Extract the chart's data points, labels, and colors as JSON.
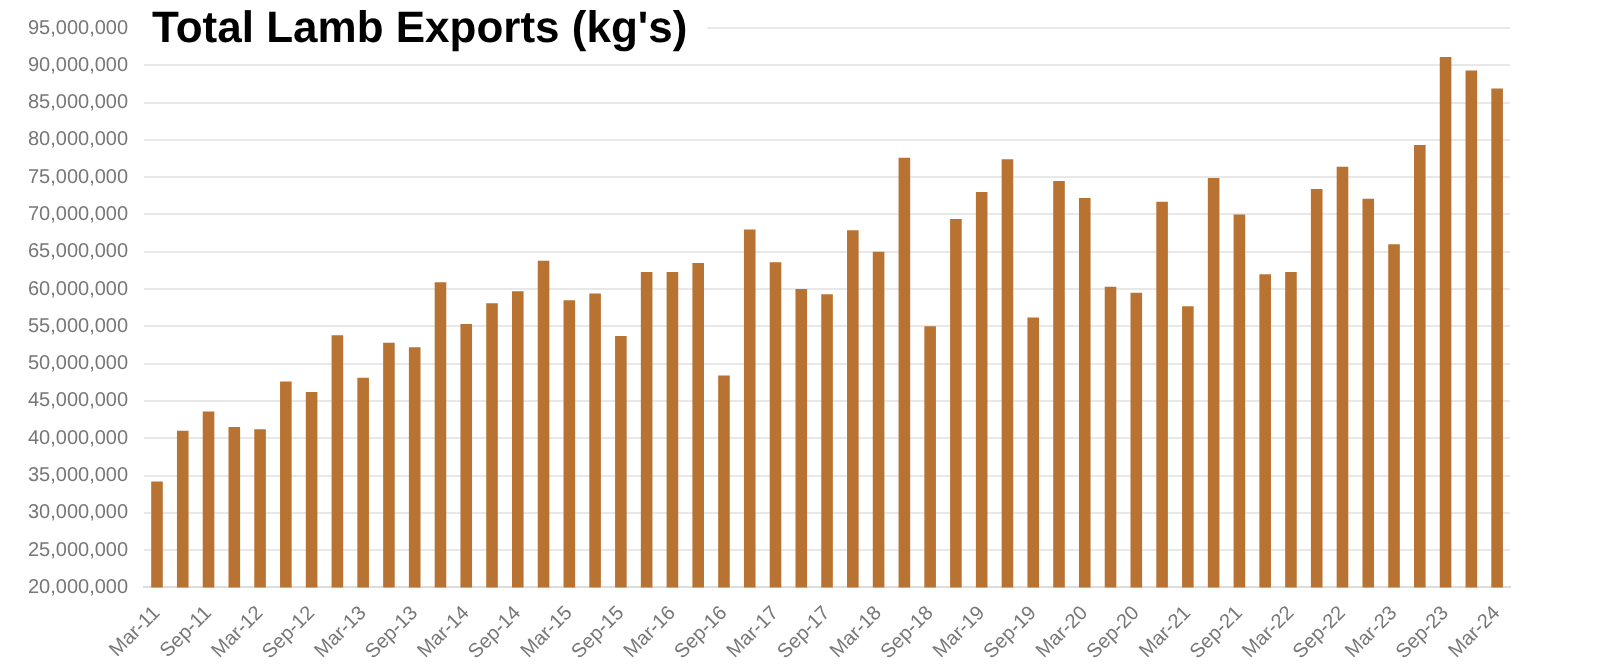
{
  "chart_data": {
    "type": "bar",
    "title": "Total Lamb Exports (kg's)",
    "categories": [
      "Mar-11",
      null,
      "Sep-11",
      null,
      "Mar-12",
      null,
      "Sep-12",
      null,
      "Mar-13",
      null,
      "Sep-13",
      null,
      "Mar-14",
      null,
      "Sep-14",
      null,
      "Mar-15",
      null,
      "Sep-15",
      null,
      "Mar-16",
      null,
      "Sep-16",
      null,
      "Mar-17",
      null,
      "Sep-17",
      null,
      "Mar-18",
      null,
      "Sep-18",
      null,
      "Mar-19",
      null,
      "Sep-19",
      null,
      "Mar-20",
      null,
      "Sep-20",
      null,
      "Mar-21",
      null,
      "Sep-21",
      null,
      "Mar-22",
      null,
      "Sep-22",
      null,
      "Mar-23",
      null,
      "Sep-23",
      null,
      "Mar-24"
    ],
    "values": [
      34200000,
      41000000,
      43600000,
      41500000,
      41200000,
      47600000,
      46200000,
      53800000,
      48100000,
      52800000,
      52200000,
      60900000,
      55300000,
      58100000,
      59700000,
      63800000,
      58500000,
      59400000,
      53700000,
      62300000,
      62300000,
      63500000,
      48400000,
      68000000,
      63600000,
      60000000,
      59300000,
      67900000,
      65000000,
      77600000,
      55000000,
      69400000,
      73000000,
      77400000,
      56200000,
      74500000,
      72200000,
      60300000,
      59500000,
      71700000,
      57700000,
      74900000,
      70000000,
      62000000,
      62300000,
      73400000,
      76400000,
      72100000,
      66000000,
      79300000,
      91100000,
      89300000,
      86900000
    ],
    "color": "#b87333",
    "ylim": [
      20000000,
      95000000
    ],
    "yticks": [
      {
        "value": 20000000,
        "label": "20,000,000"
      },
      {
        "value": 25000000,
        "label": "25,000,000"
      },
      {
        "value": 30000000,
        "label": "30,000,000"
      },
      {
        "value": 35000000,
        "label": "35,000,000"
      },
      {
        "value": 40000000,
        "label": "40,000,000"
      },
      {
        "value": 45000000,
        "label": "45,000,000"
      },
      {
        "value": 50000000,
        "label": "50,000,000"
      },
      {
        "value": 55000000,
        "label": "55,000,000"
      },
      {
        "value": 60000000,
        "label": "60,000,000"
      },
      {
        "value": 65000000,
        "label": "65,000,000"
      },
      {
        "value": 70000000,
        "label": "70,000,000"
      },
      {
        "value": 75000000,
        "label": "75,000,000"
      },
      {
        "value": 80000000,
        "label": "80,000,000"
      },
      {
        "value": 85000000,
        "label": "85,000,000"
      },
      {
        "value": 90000000,
        "label": "90,000,000"
      },
      {
        "value": 95000000,
        "label": "95,000,000"
      }
    ],
    "grid": "y",
    "legend": false
  }
}
